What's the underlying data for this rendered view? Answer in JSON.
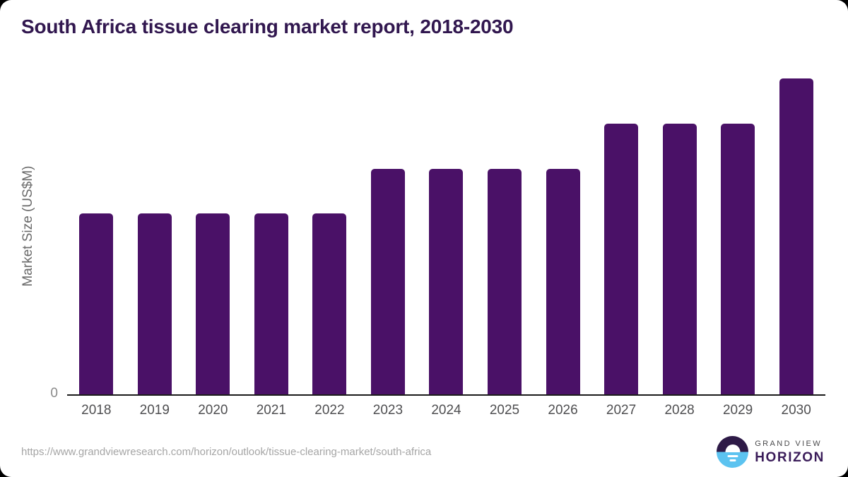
{
  "header": {
    "title": "South Africa tissue clearing market report, 2018-2030",
    "title_color": "#31174f"
  },
  "chart_data": {
    "type": "bar",
    "title": "South Africa tissue clearing market report, 2018-2030",
    "categories": [
      "2018",
      "2019",
      "2020",
      "2021",
      "2022",
      "2023",
      "2024",
      "2025",
      "2026",
      "2027",
      "2028",
      "2029",
      "2030"
    ],
    "values": [
      4,
      4,
      4,
      4,
      4,
      5,
      5,
      5,
      5,
      6,
      6,
      6,
      7
    ],
    "values_estimated": true,
    "xlabel": "",
    "ylabel": "Market Size (US$M)",
    "ylim": [
      0,
      7.2
    ],
    "yticks": [
      "0"
    ],
    "grid": false,
    "legend": false,
    "bar_color": "#4a1167",
    "axis_line_color": "#1b1b1b",
    "tick_label_color": "#4f4f51"
  },
  "footer": {
    "source_url": "https://www.grandviewresearch.com/horizon/outlook/tissue-clearing-market/south-africa",
    "logo": {
      "brand_top": "GRAND VIEW",
      "brand_bottom": "HORIZON",
      "circle_top_color": "#2e1a47",
      "circle_bottom_color": "#5cc3f0"
    }
  }
}
